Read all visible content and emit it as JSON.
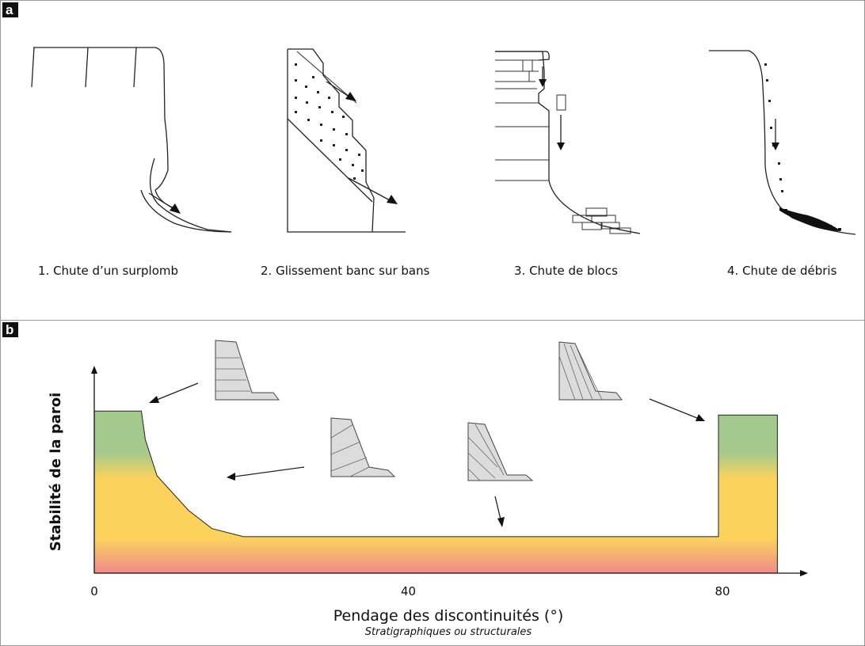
{
  "panel_a": {
    "tag": "a",
    "captions": [
      "1. Chute d’un surplomb",
      "2. Glissement banc sur bans",
      "3. Chute de blocs",
      "4. Chute de débris"
    ]
  },
  "panel_b": {
    "tag": "b",
    "ylabel": "Stabilité de la paroi",
    "xlabel": "Pendage des discontinuités (°)",
    "xlabel_sub": "Stratigraphiques ou structurales",
    "xticks": [
      "0",
      "40",
      "80"
    ],
    "colors": {
      "stable": "#a3c98e",
      "moderate": "#fbd35c",
      "unstable": "#f08a8a"
    }
  },
  "chart_data": {
    "type": "area",
    "x_tick_values": [
      0,
      40,
      80
    ],
    "x": [
      0,
      6,
      6.5,
      8,
      12,
      15,
      19,
      79.5,
      79.5,
      87
    ],
    "y_relative": [
      0.8,
      0.8,
      0.66,
      0.48,
      0.31,
      0.22,
      0.18,
      0.18,
      0.78,
      0.78
    ],
    "xlim": [
      0,
      87
    ],
    "ylim": [
      0,
      1
    ]
  }
}
